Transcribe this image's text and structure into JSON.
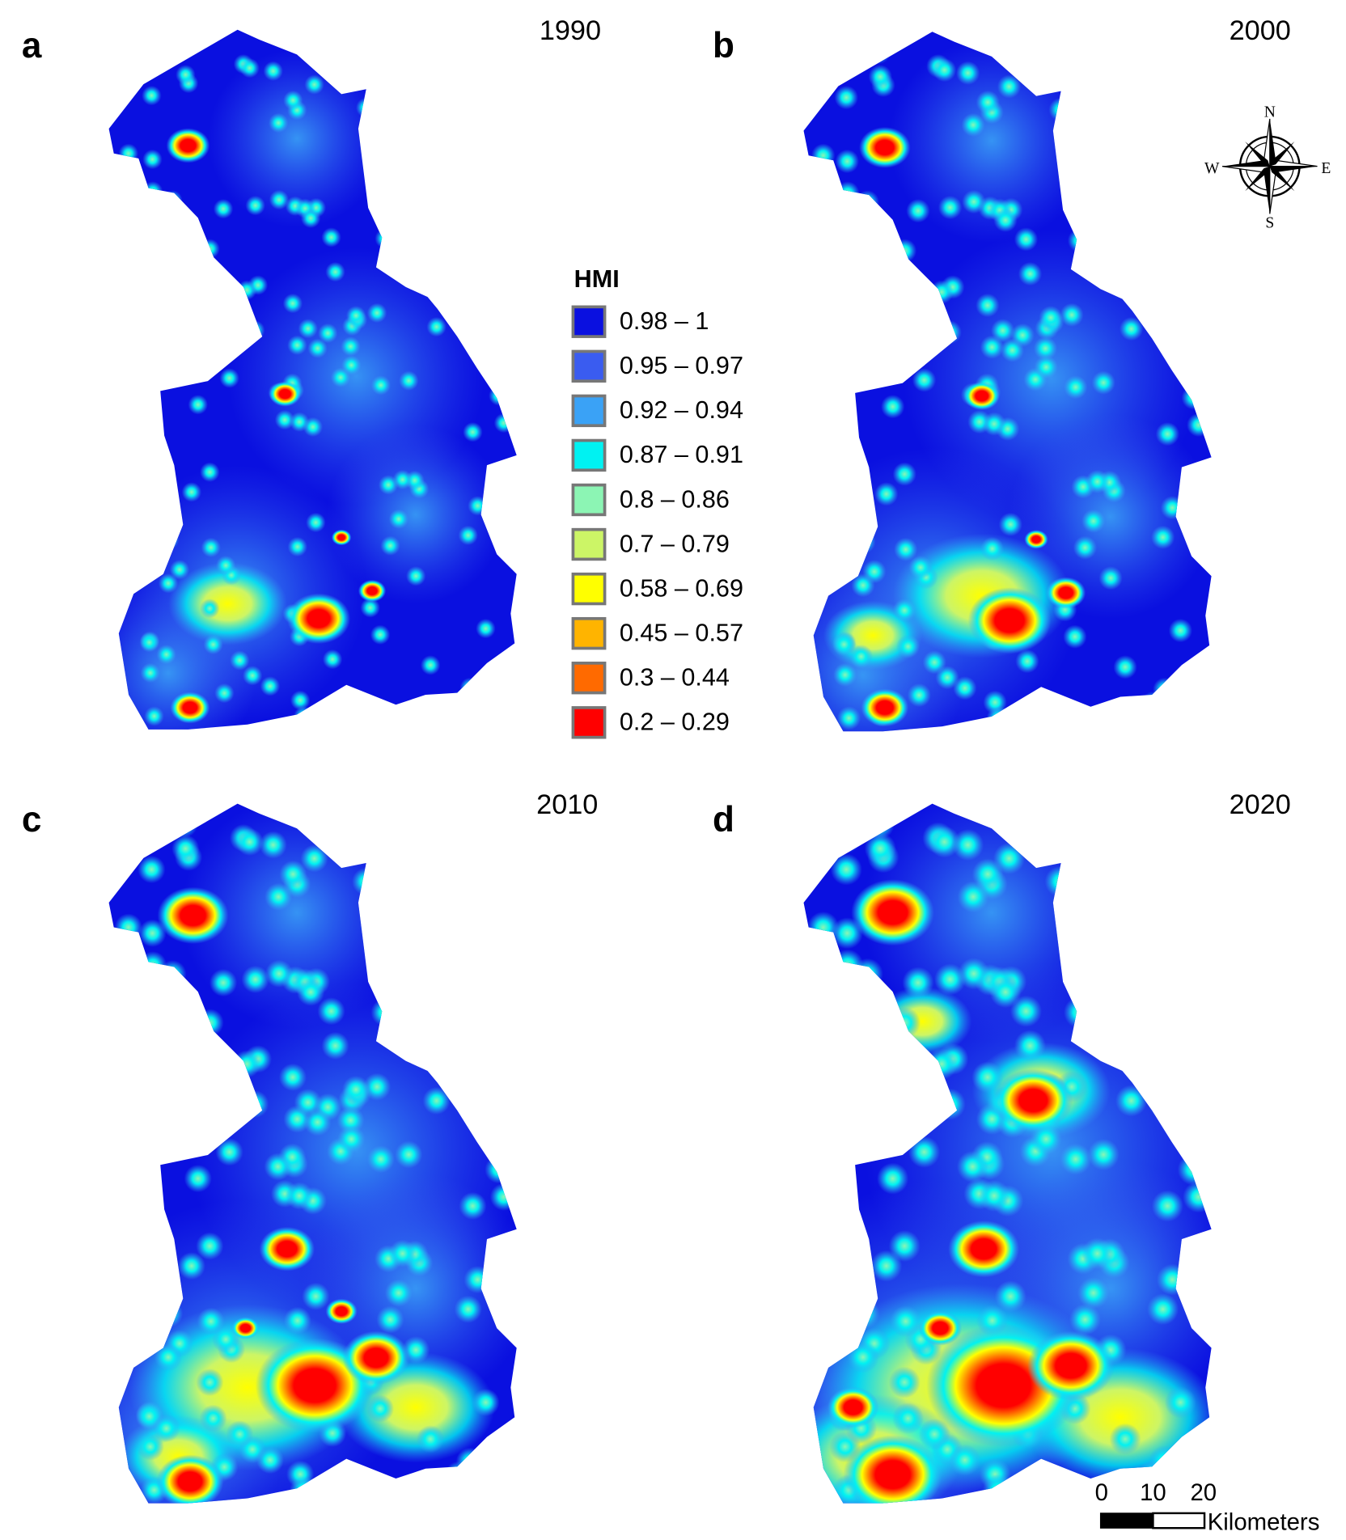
{
  "panels": [
    {
      "letter": "a",
      "year": "1990"
    },
    {
      "letter": "b",
      "year": "2000"
    },
    {
      "letter": "c",
      "year": "2010"
    },
    {
      "letter": "d",
      "year": "2020"
    }
  ],
  "legend": {
    "title": "HMI",
    "items": [
      {
        "label": "0.98 – 1",
        "color": "#0a10e0"
      },
      {
        "label": "0.95 – 0.97",
        "color": "#3a5cf0"
      },
      {
        "label": "0.92 – 0.94",
        "color": "#3aa2f6"
      },
      {
        "label": "0.87 – 0.91",
        "color": "#00f2f2"
      },
      {
        "label": "0.8 – 0.86",
        "color": "#8cf5b4"
      },
      {
        "label": "0.7 – 0.79",
        "color": "#ccf566"
      },
      {
        "label": "0.58 – 0.69",
        "color": "#ffff00"
      },
      {
        "label": "0.45 – 0.57",
        "color": "#ffb400"
      },
      {
        "label": "0.3 – 0.44",
        "color": "#ff6a00"
      },
      {
        "label": "0.2 – 0.29",
        "color": "#ff0000"
      }
    ]
  },
  "compass": {
    "n": "N",
    "s": "S",
    "e": "E",
    "w": "W"
  },
  "scale_bar": {
    "ticks": [
      "0",
      "10",
      "20"
    ],
    "unit": "Kilometers"
  }
}
